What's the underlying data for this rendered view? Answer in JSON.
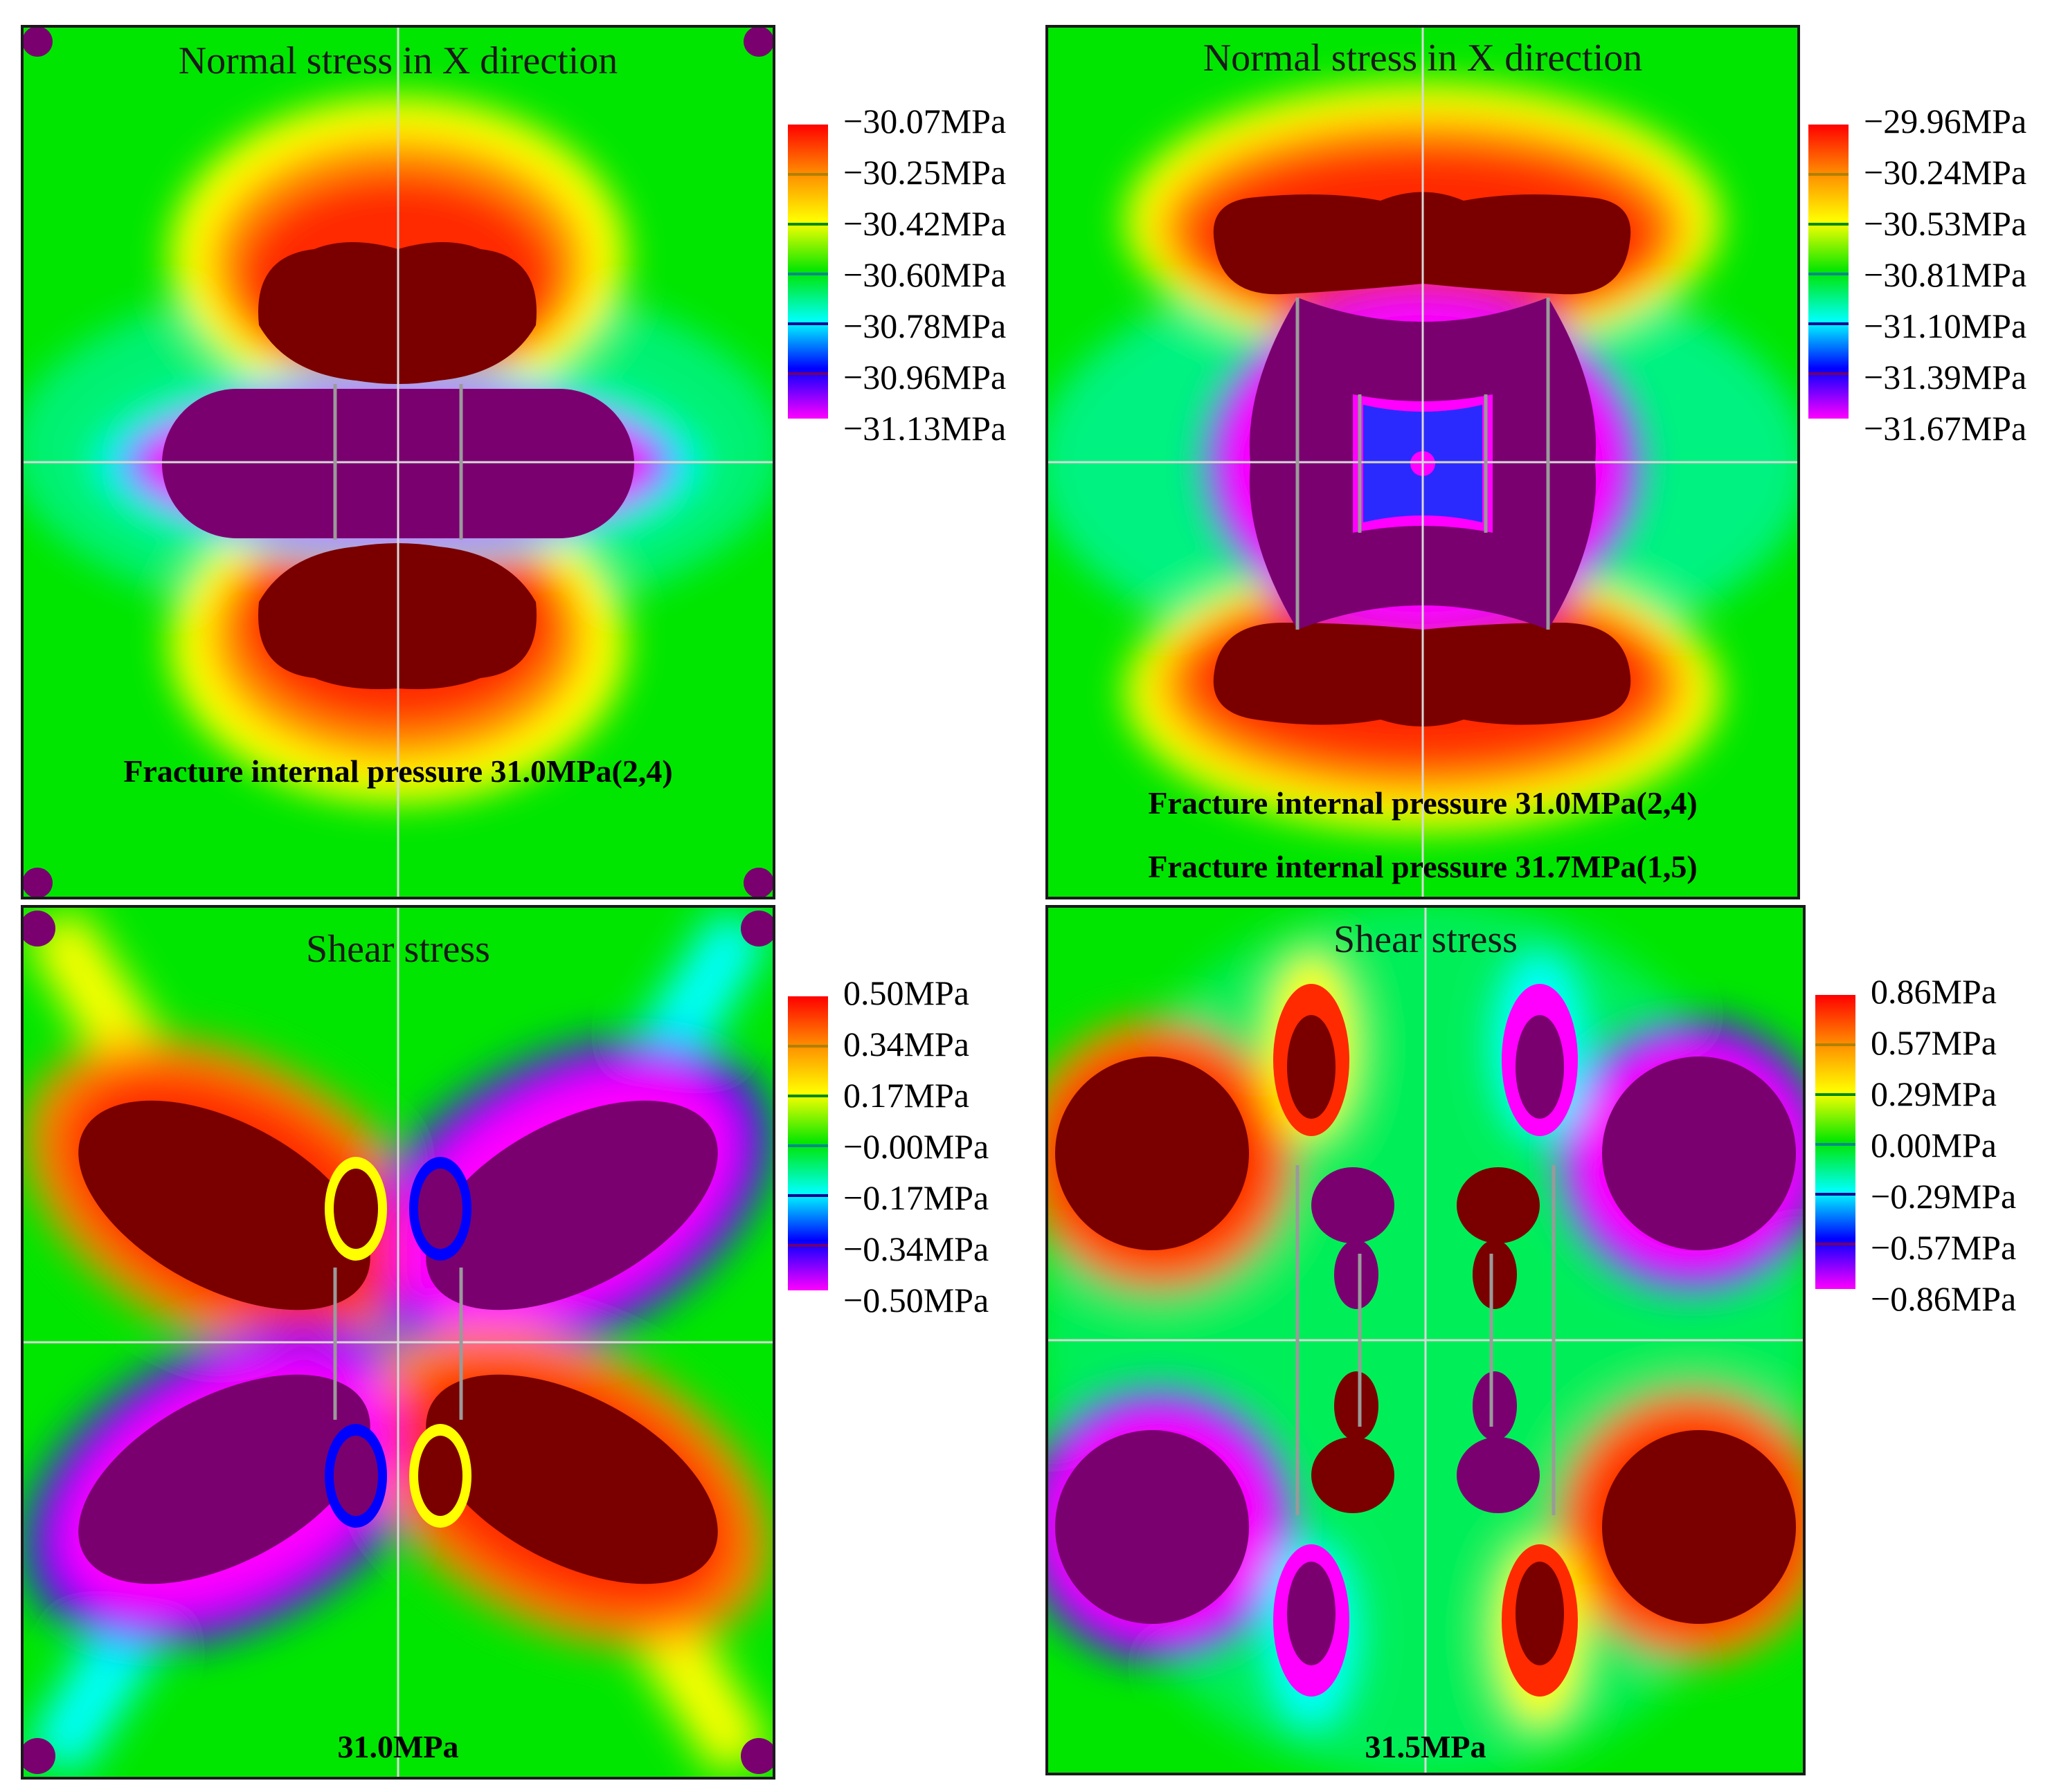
{
  "panels": {
    "top_left": {
      "title": "Normal stress in X direction",
      "notes": [
        "Fracture internal pressure 31.0MPa(2,4)"
      ],
      "legend": [
        "−30.07MPa",
        "−30.25MPa",
        "−30.42MPa",
        "−30.60MPa",
        "−30.78MPa",
        "−30.96MPa",
        "−31.13MPa"
      ]
    },
    "top_right": {
      "title": "Normal stress in X direction",
      "notes": [
        "Fracture internal pressure 31.0MPa(2,4)",
        "Fracture internal pressure 31.7MPa(1,5)"
      ],
      "legend": [
        "−29.96MPa",
        "−30.24MPa",
        "−30.53MPa",
        "−30.81MPa",
        "−31.10MPa",
        "−31.39MPa",
        "−31.67MPa"
      ]
    },
    "bottom_left": {
      "title": "Shear stress",
      "notes": [
        "31.0MPa"
      ],
      "legend": [
        "0.50MPa",
        "0.34MPa",
        "0.17MPa",
        "−0.00MPa",
        "−0.17MPa",
        "−0.34MPa",
        "−0.50MPa"
      ]
    },
    "bottom_right": {
      "title": "Shear stress",
      "notes": [
        "31.5MPa"
      ],
      "legend": [
        "0.86MPa",
        "0.57MPa",
        "0.29MPa",
        "0.00MPa",
        "−0.29MPa",
        "−0.57MPa",
        "−0.86MPa"
      ]
    }
  },
  "colors": {
    "max": "#7a0000",
    "red": "#ff2a00",
    "orange": "#ff8c00",
    "yellow": "#ffff00",
    "green": "#00e600",
    "cyan": "#00ffff",
    "blue": "#0000ff",
    "magenta": "#ff00ff",
    "min": "#7a0070"
  }
}
